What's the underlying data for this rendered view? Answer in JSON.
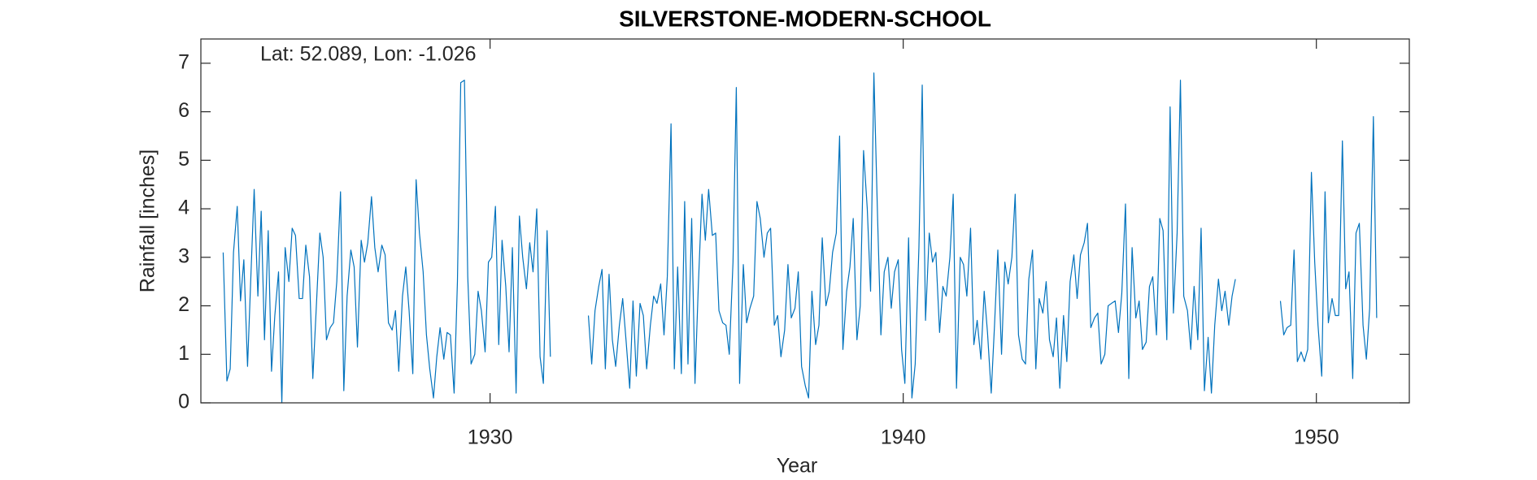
{
  "chart_data": {
    "type": "line",
    "title": "SILVERSTONE-MODERN-SCHOOL",
    "annotation": "Lat: 52.089, Lon: -1.026",
    "xlabel": "Year",
    "ylabel": "Rainfall [inches]",
    "color": "#0072bd",
    "xlim": [
      1923,
      1952.25
    ],
    "ylim": [
      0,
      7.5
    ],
    "xticks": [
      1930,
      1940,
      1950
    ],
    "yticks": [
      0,
      1,
      2,
      3,
      4,
      5,
      6,
      7
    ],
    "x": [
      1923.54,
      1923.63,
      1923.71,
      1923.79,
      1923.88,
      1923.96,
      1924.04,
      1924.13,
      1924.21,
      1924.29,
      1924.38,
      1924.46,
      1924.54,
      1924.63,
      1924.71,
      1924.79,
      1924.88,
      1924.96,
      1925.04,
      1925.13,
      1925.21,
      1925.29,
      1925.38,
      1925.46,
      1925.54,
      1925.63,
      1925.71,
      1925.79,
      1925.88,
      1925.96,
      1926.04,
      1926.13,
      1926.21,
      1926.29,
      1926.38,
      1926.46,
      1926.54,
      1926.63,
      1926.71,
      1926.79,
      1926.88,
      1926.96,
      1927.04,
      1927.13,
      1927.21,
      1927.29,
      1927.38,
      1927.46,
      1927.54,
      1927.63,
      1927.71,
      1927.79,
      1927.88,
      1927.96,
      1928.04,
      1928.13,
      1928.21,
      1928.29,
      1928.38,
      1928.46,
      1928.54,
      1928.63,
      1928.71,
      1928.79,
      1928.88,
      1928.96,
      1929.04,
      1929.13,
      1929.21,
      1929.29,
      1929.38,
      1929.46,
      1929.54,
      1929.63,
      1929.71,
      1929.79,
      1929.88,
      1929.96,
      1930.04,
      1930.13,
      1930.21,
      1930.29,
      1930.38,
      1930.46,
      1930.54,
      1930.63,
      1930.71,
      1930.79,
      1930.88,
      1930.96,
      1931.04,
      1931.13,
      1931.21,
      1931.29,
      1931.38,
      1931.46,
      1931.9,
      1932.38,
      1932.46,
      1932.54,
      1932.63,
      1932.71,
      1932.79,
      1932.88,
      1932.96,
      1933.04,
      1933.13,
      1933.21,
      1933.29,
      1933.38,
      1933.46,
      1933.54,
      1933.63,
      1933.71,
      1933.79,
      1933.88,
      1933.96,
      1934.04,
      1934.13,
      1934.21,
      1934.29,
      1934.38,
      1934.46,
      1934.54,
      1934.63,
      1934.71,
      1934.79,
      1934.88,
      1934.96,
      1935.04,
      1935.13,
      1935.21,
      1935.29,
      1935.38,
      1935.46,
      1935.54,
      1935.63,
      1935.71,
      1935.79,
      1935.88,
      1935.96,
      1936.04,
      1936.13,
      1936.21,
      1936.29,
      1936.38,
      1936.46,
      1936.54,
      1936.63,
      1936.71,
      1936.79,
      1936.88,
      1936.96,
      1937.04,
      1937.13,
      1937.21,
      1937.29,
      1937.38,
      1937.46,
      1937.54,
      1937.63,
      1937.71,
      1937.79,
      1937.88,
      1937.96,
      1938.04,
      1938.13,
      1938.21,
      1938.29,
      1938.38,
      1938.46,
      1938.54,
      1938.63,
      1938.71,
      1938.79,
      1938.88,
      1938.96,
      1939.04,
      1939.13,
      1939.21,
      1939.29,
      1939.38,
      1939.46,
      1939.54,
      1939.63,
      1939.71,
      1939.79,
      1939.88,
      1939.96,
      1940.04,
      1940.13,
      1940.21,
      1940.29,
      1940.38,
      1940.46,
      1940.54,
      1940.63,
      1940.71,
      1940.79,
      1940.88,
      1940.96,
      1941.04,
      1941.13,
      1941.21,
      1941.29,
      1941.38,
      1941.46,
      1941.54,
      1941.63,
      1941.71,
      1941.79,
      1941.88,
      1941.96,
      1942.04,
      1942.13,
      1942.21,
      1942.29,
      1942.38,
      1942.46,
      1942.54,
      1942.63,
      1942.71,
      1942.79,
      1942.88,
      1942.96,
      1943.04,
      1943.13,
      1943.21,
      1943.29,
      1943.38,
      1943.46,
      1943.54,
      1943.63,
      1943.71,
      1943.79,
      1943.88,
      1943.96,
      1944.04,
      1944.13,
      1944.21,
      1944.29,
      1944.38,
      1944.46,
      1944.54,
      1944.63,
      1944.71,
      1944.79,
      1944.88,
      1944.96,
      1945.04,
      1945.13,
      1945.21,
      1945.29,
      1945.38,
      1945.46,
      1945.54,
      1945.63,
      1945.71,
      1945.79,
      1945.88,
      1945.96,
      1946.04,
      1946.13,
      1946.21,
      1946.29,
      1946.38,
      1946.46,
      1946.54,
      1946.63,
      1946.71,
      1946.79,
      1946.88,
      1946.96,
      1947.04,
      1947.13,
      1947.21,
      1947.29,
      1947.38,
      1947.46,
      1947.54,
      1947.63,
      1947.71,
      1947.79,
      1947.88,
      1947.96,
      1948.04,
      1948.6,
      1949.13,
      1949.21,
      1949.29,
      1949.38,
      1949.46,
      1949.54,
      1949.63,
      1949.71,
      1949.79,
      1949.88,
      1949.96,
      1950.04,
      1950.13,
      1950.21,
      1950.29,
      1950.38,
      1950.46,
      1950.54,
      1950.63,
      1950.71,
      1950.79,
      1950.88,
      1950.96,
      1951.04,
      1951.13,
      1951.21,
      1951.29,
      1951.38,
      1951.46
    ],
    "values": [
      3.1,
      0.45,
      0.7,
      3.1,
      4.05,
      2.1,
      2.95,
      0.75,
      2.6,
      4.4,
      2.2,
      3.95,
      1.3,
      3.55,
      0.65,
      1.8,
      2.7,
      0.0,
      3.2,
      2.5,
      3.6,
      3.45,
      2.15,
      2.15,
      3.25,
      2.6,
      0.5,
      1.9,
      3.5,
      3.0,
      1.3,
      1.55,
      1.65,
      2.5,
      4.35,
      0.25,
      2.2,
      3.15,
      2.8,
      1.15,
      3.35,
      2.9,
      3.3,
      4.25,
      3.2,
      2.7,
      3.25,
      3.05,
      1.65,
      1.5,
      1.9,
      0.65,
      2.2,
      2.8,
      1.9,
      0.6,
      4.6,
      3.5,
      2.7,
      1.4,
      0.7,
      0.1,
      0.95,
      1.55,
      0.9,
      1.45,
      1.4,
      0.2,
      2.5,
      6.6,
      6.65,
      2.6,
      0.8,
      1.0,
      2.3,
      1.9,
      1.05,
      2.9,
      3.0,
      4.05,
      1.2,
      3.35,
      2.4,
      1.05,
      3.2,
      0.2,
      3.85,
      3.0,
      2.35,
      3.3,
      2.7,
      4.0,
      0.95,
      0.4,
      3.55,
      0.95,
      null,
      1.8,
      0.8,
      1.9,
      2.4,
      2.75,
      0.7,
      2.65,
      1.3,
      0.75,
      1.6,
      2.15,
      1.3,
      0.3,
      2.1,
      0.55,
      2.05,
      1.8,
      0.7,
      1.6,
      2.2,
      2.05,
      2.45,
      1.4,
      2.6,
      5.75,
      0.7,
      2.8,
      0.6,
      4.15,
      0.8,
      3.8,
      0.4,
      2.4,
      4.3,
      3.35,
      4.4,
      3.45,
      3.5,
      1.9,
      1.65,
      1.6,
      1.0,
      2.9,
      6.5,
      0.4,
      2.85,
      1.65,
      1.95,
      2.2,
      4.15,
      3.8,
      3.0,
      3.5,
      3.6,
      1.6,
      1.8,
      0.95,
      1.5,
      2.85,
      1.75,
      1.95,
      2.7,
      0.75,
      0.35,
      0.1,
      2.3,
      1.2,
      1.6,
      3.4,
      2.0,
      2.3,
      3.1,
      3.5,
      5.5,
      1.1,
      2.3,
      2.8,
      3.8,
      1.3,
      2.0,
      5.2,
      4.0,
      2.3,
      6.8,
      3.8,
      1.4,
      2.7,
      3.0,
      1.95,
      2.7,
      2.95,
      1.1,
      0.4,
      3.4,
      0.1,
      0.8,
      3.2,
      6.55,
      1.7,
      3.5,
      2.9,
      3.1,
      1.45,
      2.4,
      2.2,
      3.0,
      4.3,
      0.3,
      3.0,
      2.85,
      2.2,
      3.6,
      1.2,
      1.7,
      0.9,
      2.3,
      1.45,
      0.2,
      1.6,
      3.15,
      1.0,
      2.9,
      2.45,
      3.0,
      4.3,
      1.4,
      0.9,
      0.8,
      2.55,
      3.15,
      0.7,
      2.15,
      1.85,
      2.5,
      1.3,
      0.95,
      1.75,
      0.3,
      1.8,
      0.85,
      2.5,
      3.05,
      2.15,
      3.05,
      3.3,
      3.7,
      1.55,
      1.75,
      1.85,
      0.8,
      1.0,
      2.0,
      2.05,
      2.1,
      1.45,
      2.25,
      4.1,
      0.5,
      3.2,
      1.75,
      2.1,
      1.1,
      1.25,
      2.4,
      2.6,
      1.4,
      3.8,
      3.55,
      1.3,
      6.1,
      1.85,
      3.5,
      6.65,
      2.2,
      1.9,
      1.1,
      2.4,
      1.3,
      3.6,
      0.25,
      1.35,
      0.2,
      1.6,
      2.55,
      1.9,
      2.3,
      1.6,
      2.2,
      2.55,
      null,
      2.1,
      1.4,
      1.55,
      1.6,
      3.15,
      0.85,
      1.05,
      0.85,
      1.1,
      4.75,
      2.9,
      1.6,
      0.55,
      4.35,
      1.65,
      2.15,
      1.8,
      1.8,
      5.4,
      2.35,
      2.7,
      0.5,
      3.5,
      3.7,
      1.6,
      0.9,
      1.95,
      5.9,
      1.75
    ]
  }
}
